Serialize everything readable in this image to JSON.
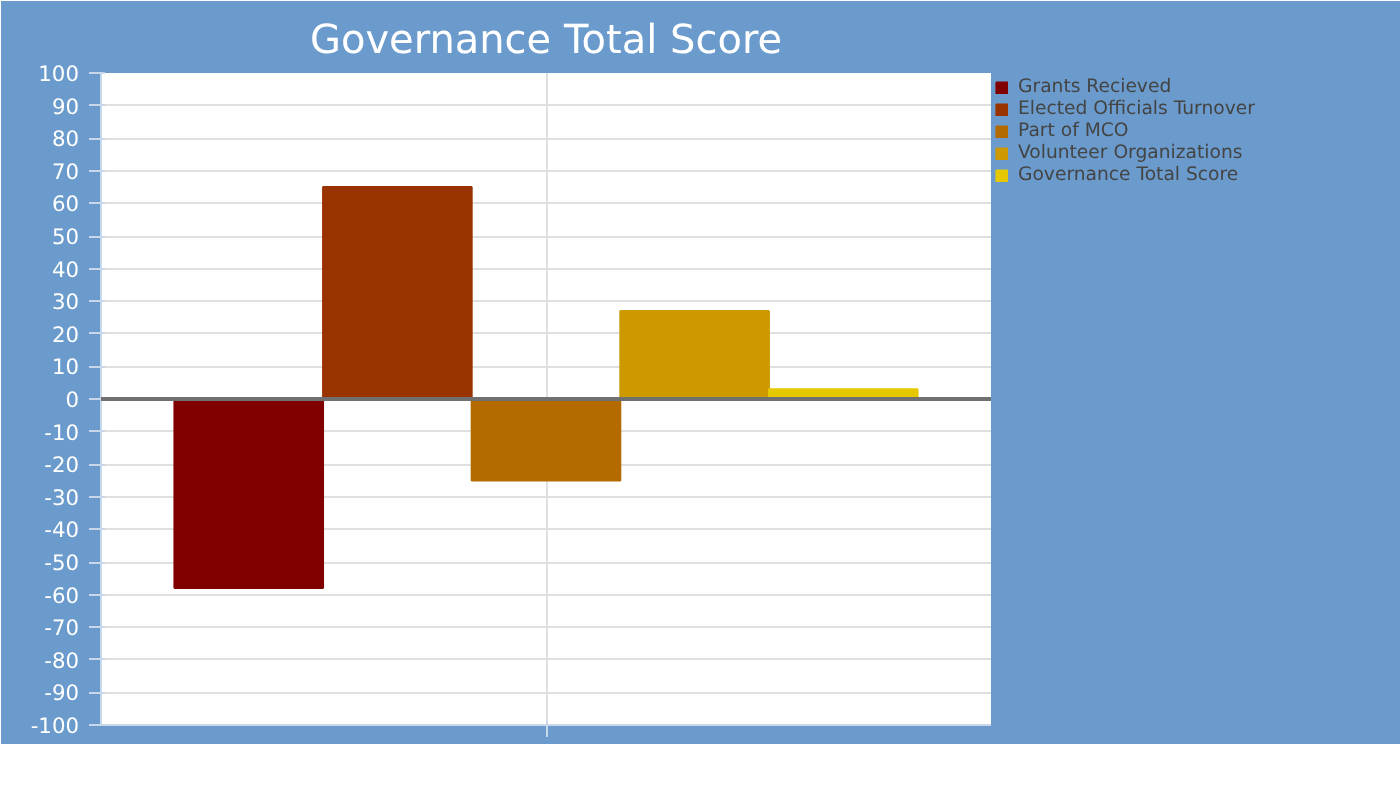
{
  "chart_data": {
    "type": "bar",
    "title": "Governance Total Score",
    "categories": [
      null
    ],
    "series": [
      {
        "name": "Grants Recieved",
        "color": "#800000",
        "values": [
          -58
        ]
      },
      {
        "name": "Elected Officials Turnover",
        "color": "#993300",
        "values": [
          65
        ]
      },
      {
        "name": "Part of MCO",
        "color": "#b36b00",
        "values": [
          -25
        ]
      },
      {
        "name": "Volunteer Organizations",
        "color": "#cc9900",
        "values": [
          27
        ]
      },
      {
        "name": "Governance Total Score",
        "color": "#e6c800",
        "values": [
          3
        ]
      }
    ],
    "ylim": [
      -100,
      100
    ],
    "yticks": [
      -100,
      -90,
      -80,
      -70,
      -60,
      -50,
      -40,
      -30,
      -20,
      -10,
      0,
      10,
      20,
      30,
      40,
      50,
      60,
      70,
      80,
      90,
      100
    ],
    "grid": true,
    "legend": "right"
  }
}
